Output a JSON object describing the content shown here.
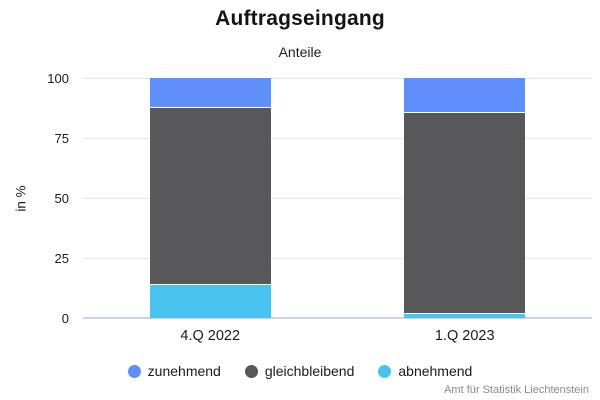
{
  "chart_data": {
    "type": "bar",
    "stacked": true,
    "title": "Auftragseingang",
    "subtitle": "Anteile",
    "ylabel": "in %",
    "categories": [
      "4.Q 2022",
      "1.Q 2023"
    ],
    "series": [
      {
        "name": "zunehmend",
        "color": "#5e8ffb",
        "values": [
          12,
          14
        ]
      },
      {
        "name": "gleichbleibend",
        "color": "#58585a",
        "values": [
          74,
          84
        ]
      },
      {
        "name": "abnehmend",
        "color": "#48c2ef",
        "values": [
          14,
          2
        ]
      }
    ],
    "ylim": [
      0,
      100
    ],
    "yticks": [
      0,
      25,
      50,
      75,
      100
    ],
    "grid": true,
    "legend_position": "bottom",
    "source": "Amt für Statistik Liechtenstein"
  },
  "colors": {
    "background": "#ffffff",
    "gridline": "#e6e6e6",
    "zero_line": "#c9d4e4",
    "title_text": "#141414",
    "axis_text": "#1c1c1c",
    "source_text": "#8a8a8a"
  }
}
